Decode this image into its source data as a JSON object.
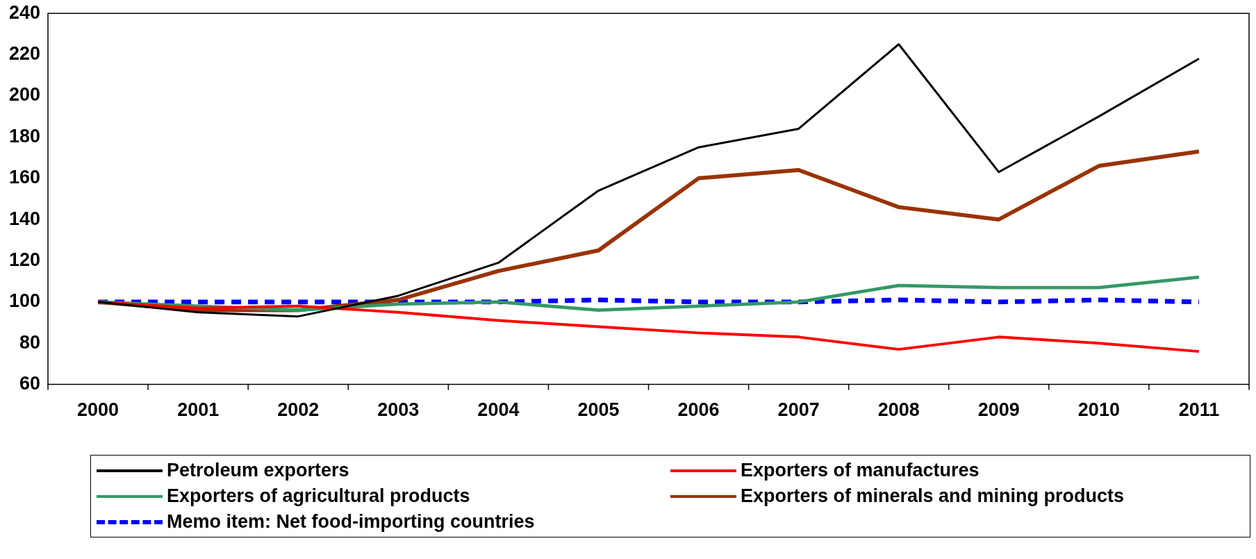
{
  "chart_data": {
    "type": "line",
    "categories": [
      "2000",
      "2001",
      "2002",
      "2003",
      "2004",
      "2005",
      "2006",
      "2007",
      "2008",
      "2009",
      "2010",
      "2011"
    ],
    "ylim": [
      60,
      240
    ],
    "yticks": [
      60,
      80,
      100,
      120,
      140,
      160,
      180,
      200,
      220,
      240
    ],
    "grid": false,
    "legend": "bottom",
    "marker": "none",
    "series": [
      {
        "name": "Petroleum exporters",
        "color": "#000000",
        "values": [
          100,
          95,
          93,
          103,
          119,
          154,
          175,
          184,
          225,
          163,
          190,
          218
        ]
      },
      {
        "name": "Exporters of manufactures",
        "color": "#ff0000",
        "values": [
          100,
          97,
          98,
          95,
          91,
          88,
          85,
          83,
          77,
          83,
          80,
          76
        ]
      },
      {
        "name": "Exporters of agricultural products",
        "color": "#339966",
        "values": [
          100,
          98,
          96,
          99,
          100,
          96,
          98,
          100,
          108,
          107,
          107,
          112
        ]
      },
      {
        "name": "Exporters of minerals and mining products",
        "color": "#993300",
        "values": [
          100,
          96,
          96,
          101,
          115,
          125,
          160,
          164,
          146,
          140,
          166,
          173
        ]
      },
      {
        "name": "Memo item: Net food-importing countries",
        "color": "#0000ff",
        "line_style": "dashed",
        "values": [
          100,
          100,
          100,
          100,
          100,
          101,
          100,
          100,
          101,
          100,
          101,
          100
        ]
      }
    ]
  }
}
